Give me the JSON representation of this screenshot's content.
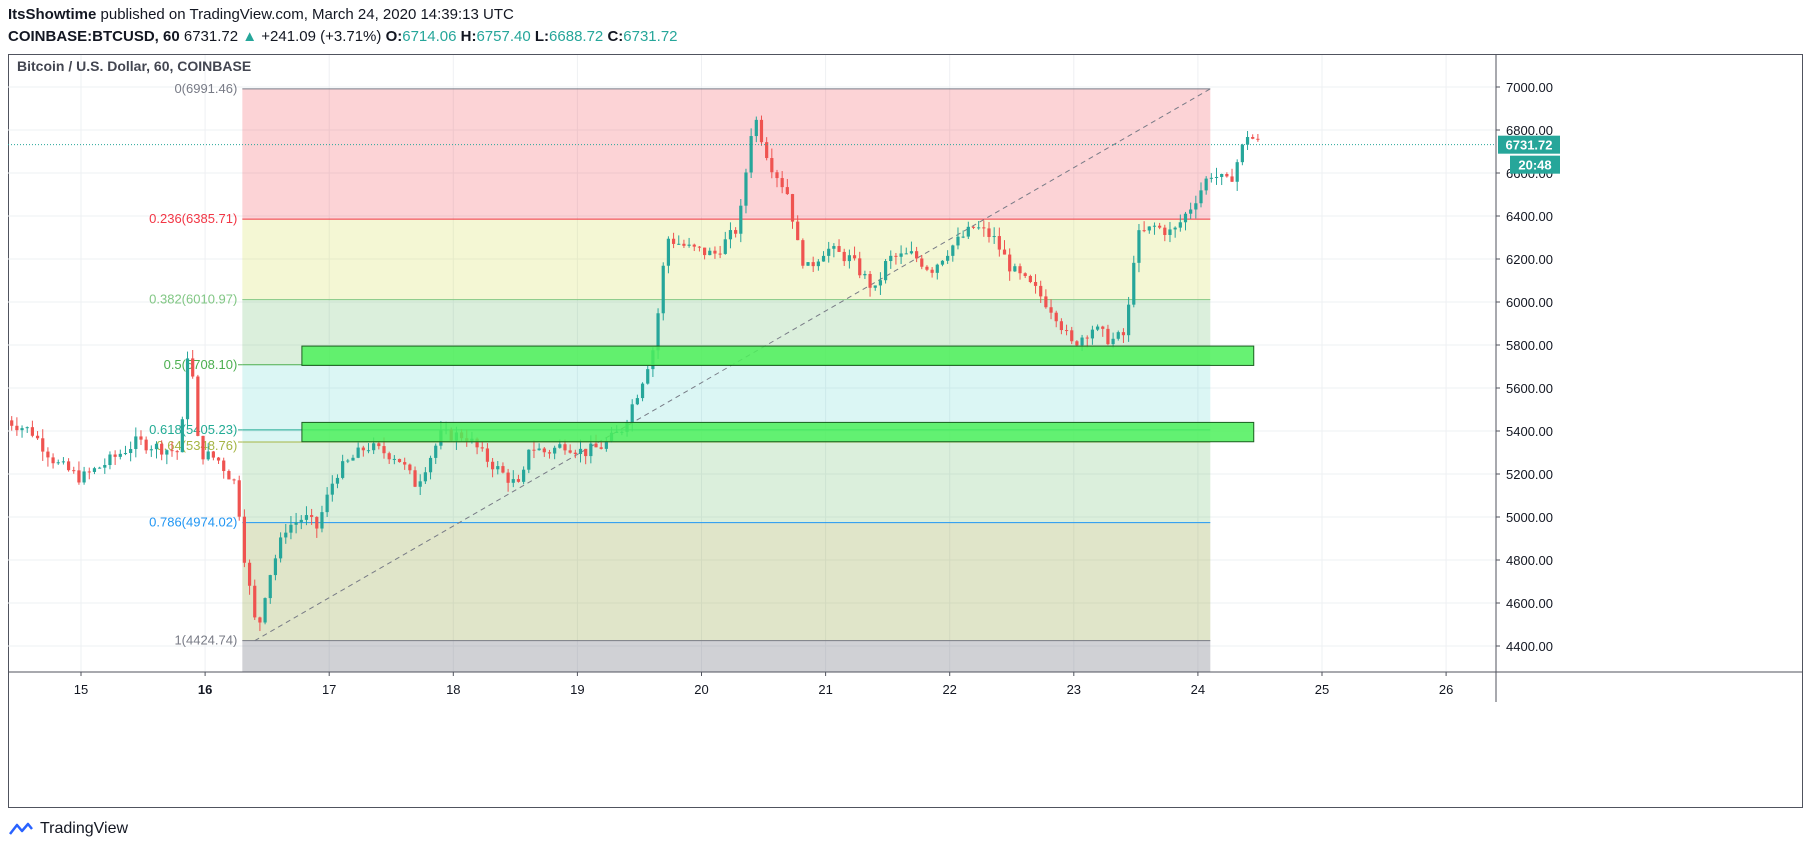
{
  "header": {
    "author": "ItsShowtime",
    "published": "published on TradingView.com, March 24, 2020 14:39:13 UTC",
    "symbol": "COINBASE:BTCUSD, 60",
    "last": "6731.72",
    "change_arrow": "▲",
    "change": "+241.09 (+3.71%)",
    "o_label": "O:",
    "o": "6714.06",
    "h_label": "H:",
    "h": "6757.40",
    "l_label": "L:",
    "l": "6688.72",
    "c_label": "C:",
    "c": "6731.72"
  },
  "footer": {
    "brand": "TradingView",
    "logo_icon": "tradingview-logo-icon"
  },
  "colors": {
    "up": "#26a69a",
    "down": "#ef5350",
    "zone": "#4cf05a",
    "price_tag": "#26a69a"
  },
  "chart_data": {
    "type": "candlestick",
    "title": "Bitcoin / U.S. Dollar, 60, COINBASE",
    "x_ticks": [
      "15",
      "16",
      "17",
      "18",
      "19",
      "20",
      "21",
      "22",
      "23",
      "24",
      "25",
      "26"
    ],
    "x_range": [
      14.4,
      26.4
    ],
    "ylim": [
      4250,
      7100
    ],
    "y_ticks": [
      "7000.00",
      "6800.00",
      "6600.00",
      "6400.00",
      "6200.00",
      "6000.00",
      "5800.00",
      "5600.00",
      "5400.00",
      "5200.00",
      "5000.00",
      "4800.00",
      "4600.00",
      "4400.00"
    ],
    "last_price": "6731.72",
    "countdown": "20:48",
    "fib_retracement": {
      "start_day": 16.3,
      "end_day": 24.1,
      "levels": [
        {
          "label": "0(6991.46)",
          "value": 6991.46,
          "color": "#787b86",
          "fill": "rgba(242,54,69,0.22)"
        },
        {
          "label": "0.236(6385.71)",
          "value": 6385.71,
          "color": "#f23645",
          "fill": "rgba(205,220,57,0.22)"
        },
        {
          "label": "0.382(6010.97)",
          "value": 6010.97,
          "color": "#81c784",
          "fill": "rgba(76,175,80,0.20)"
        },
        {
          "label": "0.5(5708.10)",
          "value": 5708.1,
          "color": "#4caf50",
          "fill": "rgba(77,208,200,0.20)"
        },
        {
          "label": "0.618(5405.23)",
          "value": 5405.23,
          "color": "#22ab94",
          "fill": "rgba(77,208,200,0.20)"
        },
        {
          "label": "0.64(5348.76)",
          "value": 5348.76,
          "color": "#a5b544",
          "fill": "rgba(76,175,80,0.20)"
        },
        {
          "label": "0.786(4974.02)",
          "value": 4974.02,
          "color": "#2196f3",
          "fill": "rgba(130,150,40,0.25)"
        },
        {
          "label": "1(4424.74)",
          "value": 4424.74,
          "color": "#787b86",
          "fill": "rgba(120,123,134,0.35)"
        }
      ]
    },
    "zones": [
      {
        "x_from": 16.78,
        "x_to": 24.45,
        "top": 5795,
        "bottom": 5705
      },
      {
        "x_from": 16.78,
        "x_to": 24.45,
        "top": 5440,
        "bottom": 5350
      }
    ],
    "trend_line": {
      "from": [
        16.4,
        4424.74
      ],
      "to": [
        24.1,
        6991.46
      ]
    },
    "candles_anchor": [
      [
        14.4,
        5450
      ],
      [
        14.6,
        5400
      ],
      [
        14.8,
        5250
      ],
      [
        15.0,
        5180
      ],
      [
        15.2,
        5250
      ],
      [
        15.45,
        5350
      ],
      [
        15.65,
        5320
      ],
      [
        15.8,
        5300
      ],
      [
        15.87,
        5850
      ],
      [
        15.95,
        5300
      ],
      [
        16.1,
        5270
      ],
      [
        16.25,
        5150
      ],
      [
        16.32,
        4800
      ],
      [
        16.42,
        4450
      ],
      [
        16.5,
        4700
      ],
      [
        16.65,
        4950
      ],
      [
        16.8,
        5000
      ],
      [
        16.9,
        4950
      ],
      [
        17.05,
        5200
      ],
      [
        17.3,
        5330
      ],
      [
        17.55,
        5280
      ],
      [
        17.7,
        5150
      ],
      [
        17.9,
        5380
      ],
      [
        18.1,
        5380
      ],
      [
        18.25,
        5280
      ],
      [
        18.4,
        5200
      ],
      [
        18.55,
        5130
      ],
      [
        18.6,
        5330
      ],
      [
        18.75,
        5300
      ],
      [
        18.9,
        5340
      ],
      [
        19.05,
        5300
      ],
      [
        19.2,
        5330
      ],
      [
        19.35,
        5400
      ],
      [
        19.5,
        5600
      ],
      [
        19.62,
        5800
      ],
      [
        19.72,
        6300
      ],
      [
        19.9,
        6250
      ],
      [
        20.1,
        6220
      ],
      [
        20.3,
        6350
      ],
      [
        20.42,
        6880
      ],
      [
        20.55,
        6650
      ],
      [
        20.7,
        6500
      ],
      [
        20.78,
        6250
      ],
      [
        20.85,
        6150
      ],
      [
        21.0,
        6250
      ],
      [
        21.2,
        6200
      ],
      [
        21.4,
        6050
      ],
      [
        21.5,
        6200
      ],
      [
        21.7,
        6220
      ],
      [
        21.85,
        6150
      ],
      [
        22.0,
        6250
      ],
      [
        22.2,
        6350
      ],
      [
        22.35,
        6300
      ],
      [
        22.5,
        6150
      ],
      [
        22.7,
        6050
      ],
      [
        22.85,
        5950
      ],
      [
        22.98,
        5800
      ],
      [
        23.15,
        5880
      ],
      [
        23.3,
        5820
      ],
      [
        23.42,
        5850
      ],
      [
        23.5,
        6300
      ],
      [
        23.65,
        6350
      ],
      [
        23.8,
        6320
      ],
      [
        23.95,
        6450
      ],
      [
        24.1,
        6600
      ],
      [
        24.25,
        6550
      ],
      [
        24.4,
        6780
      ],
      [
        24.5,
        6731.72
      ]
    ]
  }
}
